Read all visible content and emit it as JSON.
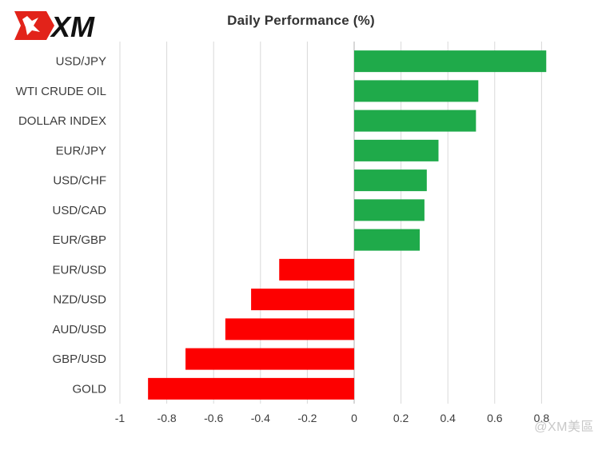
{
  "brand": {
    "logo_text": "XM"
  },
  "watermark": "@XM美區",
  "chart_data": {
    "type": "bar",
    "orientation": "horizontal",
    "title": "Daily Performance (%)",
    "categories": [
      "USD/JPY",
      "WTI CRUDE OIL",
      "DOLLAR INDEX",
      "EUR/JPY",
      "USD/CHF",
      "USD/CAD",
      "EUR/GBP",
      "EUR/USD",
      "NZD/USD",
      "AUD/USD",
      "GBP/USD",
      "GOLD"
    ],
    "values": [
      0.82,
      0.53,
      0.52,
      0.36,
      0.31,
      0.3,
      0.28,
      -0.32,
      -0.44,
      -0.55,
      -0.72,
      -0.88
    ],
    "xlim": [
      -1,
      1
    ],
    "xticks": [
      -1,
      -0.8,
      -0.6,
      -0.4,
      -0.2,
      0,
      0.2,
      0.4,
      0.6,
      0.8
    ],
    "xtick_labels": [
      "-1",
      "-0.8",
      "-0.6",
      "-0.4",
      "-0.2",
      "0",
      "0.2",
      "0.4",
      "0.6",
      "0.8"
    ],
    "grid": true,
    "colors": {
      "positive": "#1faa4a",
      "negative": "#fd0000",
      "grid": "#d9d9d9",
      "axis": "#bfbfbf"
    }
  }
}
